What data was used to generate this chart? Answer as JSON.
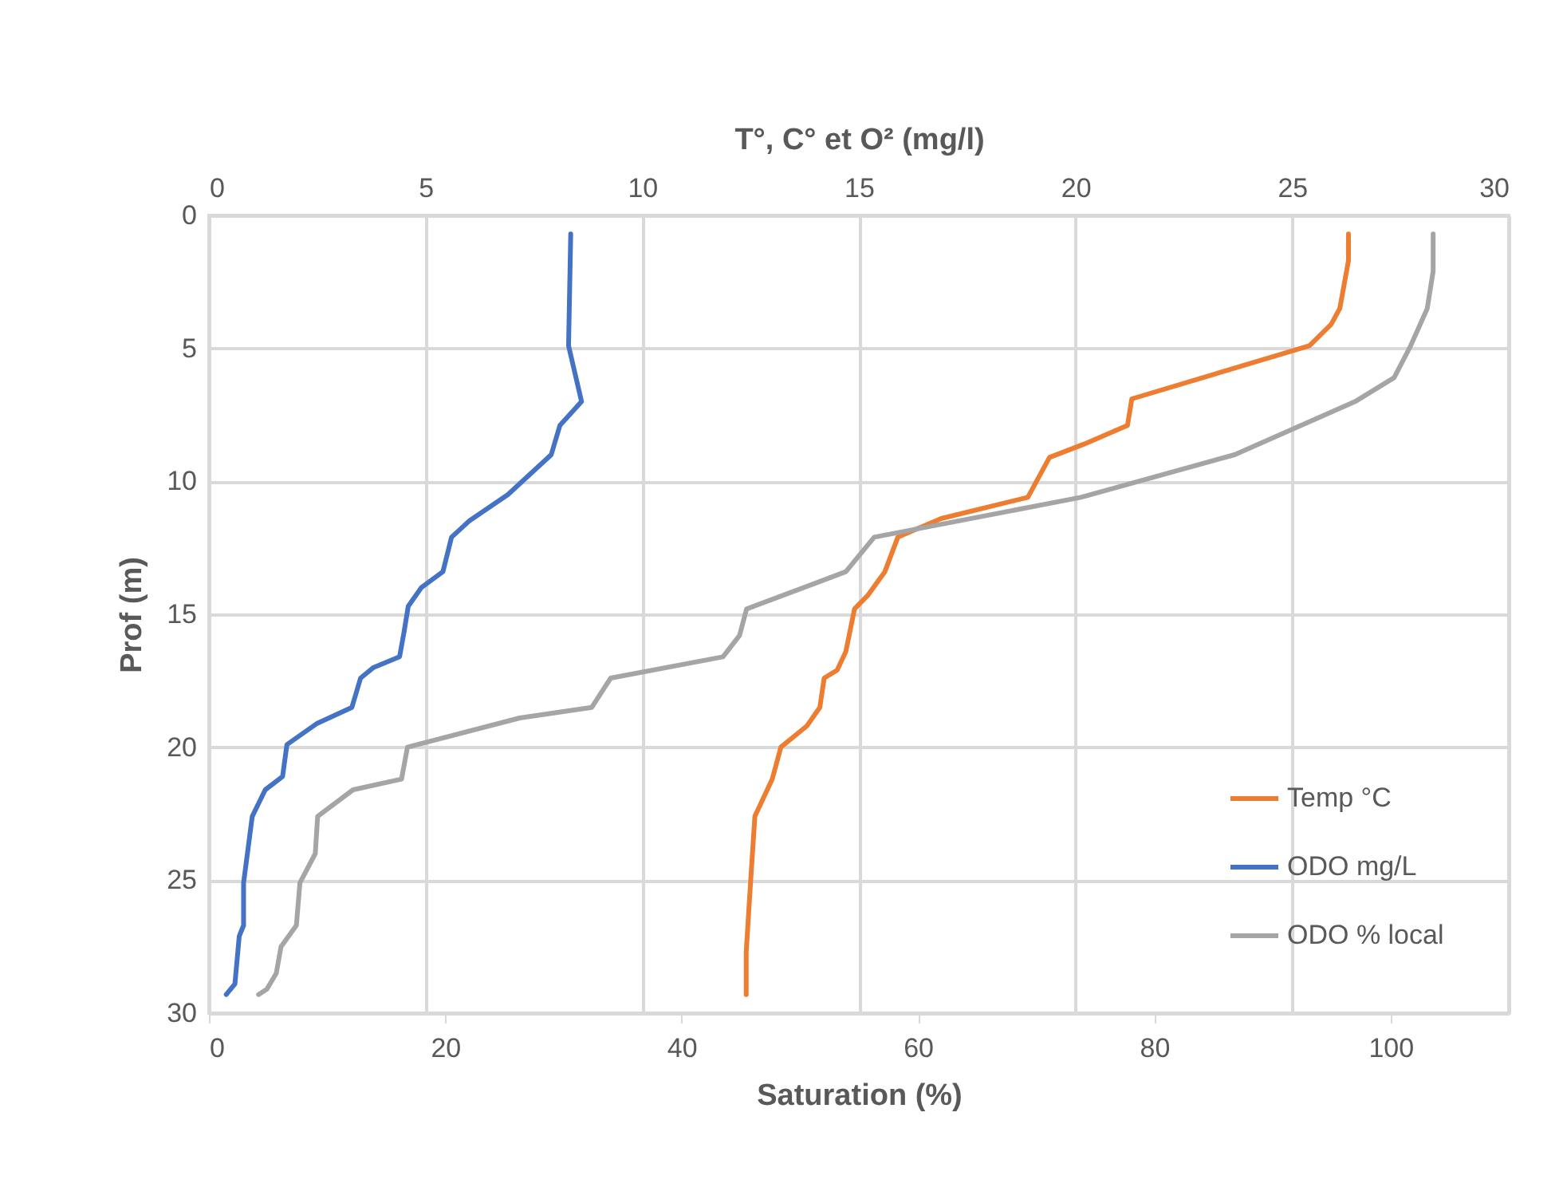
{
  "chart_data": {
    "type": "line",
    "xlabel": "Saturation (%)",
    "x2label": "T°, C° et O² (mg/l)",
    "ylabel": "Prof (m)",
    "xlim": [
      0,
      110
    ],
    "xticks": [
      0,
      20,
      40,
      60,
      80,
      100
    ],
    "x2lim": [
      0,
      30
    ],
    "x2ticks": [
      0,
      5,
      10,
      15,
      20,
      25,
      30
    ],
    "ylim": [
      30,
      0
    ],
    "yticks": [
      0,
      5,
      10,
      15,
      20,
      25,
      30
    ],
    "grid": true,
    "legend": "bottom right",
    "series": [
      {
        "name": "Temp °C",
        "color": "#ed7d31",
        "axis": "x2",
        "x": [
          26.3,
          26.3,
          26.1,
          25.9,
          25.4,
          21.3,
          21.2,
          20.2,
          19.4,
          18.9,
          16.9,
          15.9,
          15.6,
          15.2,
          14.9,
          14.7,
          14.5,
          14.2,
          14.1,
          13.8,
          13.2,
          13.0,
          12.6,
          12.5,
          12.4,
          12.4
        ],
        "values": [
          0.7,
          1.7,
          3.5,
          4.1,
          4.9,
          6.9,
          7.9,
          8.6,
          9.1,
          10.6,
          11.4,
          12.1,
          13.4,
          14.3,
          14.8,
          16.4,
          17.1,
          17.4,
          18.5,
          19.2,
          20.0,
          21.2,
          22.6,
          25.1,
          27.7,
          29.3
        ]
      },
      {
        "name": "ODO mg/L",
        "color": "#4472c4",
        "axis": "x2",
        "x": [
          8.35,
          8.3,
          8.6,
          8.1,
          7.9,
          6.9,
          6.0,
          5.6,
          5.4,
          4.9,
          4.6,
          4.5,
          4.4,
          3.8,
          3.5,
          3.3,
          2.5,
          1.8,
          1.7,
          1.3,
          1.0,
          0.8,
          0.8,
          0.7,
          0.6,
          0.4
        ],
        "values": [
          0.7,
          4.9,
          7.0,
          7.9,
          9.0,
          10.5,
          11.5,
          12.1,
          13.4,
          14.0,
          14.7,
          15.7,
          16.6,
          17.0,
          17.4,
          18.5,
          19.1,
          19.9,
          21.1,
          21.6,
          22.6,
          25.1,
          26.7,
          27.1,
          28.9,
          29.3
        ]
      },
      {
        "name": "ODO % local",
        "color": "#a5a5a5",
        "x": [
          103.6,
          103.6,
          103.1,
          101.7,
          100.3,
          97.0,
          86.8,
          73.8,
          56.3,
          53.9,
          45.5,
          44.9,
          43.5,
          34.0,
          32.4,
          26.3,
          16.8,
          16.3,
          12.2,
          9.2,
          9.0,
          7.7,
          7.4,
          6.1,
          5.7,
          4.9,
          4.2
        ],
        "values": [
          0.7,
          2.1,
          3.5,
          4.9,
          6.1,
          7.0,
          9.0,
          10.6,
          12.1,
          13.4,
          14.8,
          15.8,
          16.6,
          17.4,
          18.5,
          18.9,
          20.0,
          21.2,
          21.6,
          22.6,
          24.0,
          25.1,
          26.7,
          27.5,
          28.5,
          29.1,
          29.3
        ]
      }
    ]
  }
}
